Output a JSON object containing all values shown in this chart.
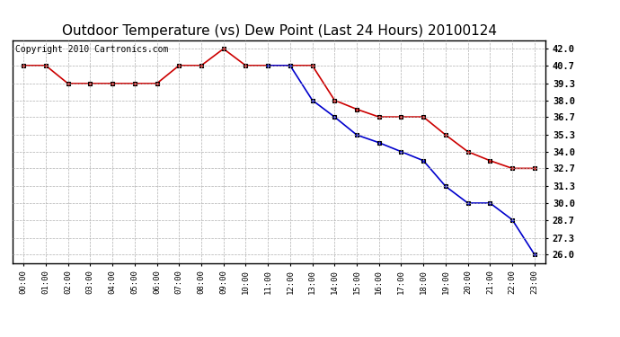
{
  "title": "Outdoor Temperature (vs) Dew Point (Last 24 Hours) 20100124",
  "copyright": "Copyright 2010 Cartronics.com",
  "x_labels": [
    "00:00",
    "01:00",
    "02:00",
    "03:00",
    "04:00",
    "05:00",
    "06:00",
    "07:00",
    "08:00",
    "09:00",
    "10:00",
    "11:00",
    "12:00",
    "13:00",
    "14:00",
    "15:00",
    "16:00",
    "17:00",
    "18:00",
    "19:00",
    "20:00",
    "21:00",
    "22:00",
    "23:00"
  ],
  "temp_data": [
    40.7,
    40.7,
    39.3,
    39.3,
    39.3,
    39.3,
    39.3,
    40.7,
    40.7,
    42.0,
    40.7,
    40.7,
    40.7,
    40.7,
    38.0,
    37.3,
    36.7,
    36.7,
    36.7,
    35.3,
    34.0,
    33.3,
    32.7,
    32.7
  ],
  "dew_data": [
    null,
    null,
    null,
    null,
    null,
    null,
    null,
    null,
    null,
    null,
    null,
    40.7,
    40.7,
    38.0,
    36.7,
    35.3,
    34.7,
    34.0,
    33.3,
    31.3,
    30.0,
    30.0,
    28.7,
    26.0
  ],
  "temp_color": "#cc0000",
  "dew_color": "#0000cc",
  "ylim_min": 25.35,
  "ylim_max": 42.65,
  "yticks": [
    42.0,
    40.7,
    39.3,
    38.0,
    36.7,
    35.3,
    34.0,
    32.7,
    31.3,
    30.0,
    28.7,
    27.3,
    26.0
  ],
  "background_color": "#ffffff",
  "grid_color": "#b0b0b0",
  "title_fontsize": 11,
  "copyright_fontsize": 7
}
